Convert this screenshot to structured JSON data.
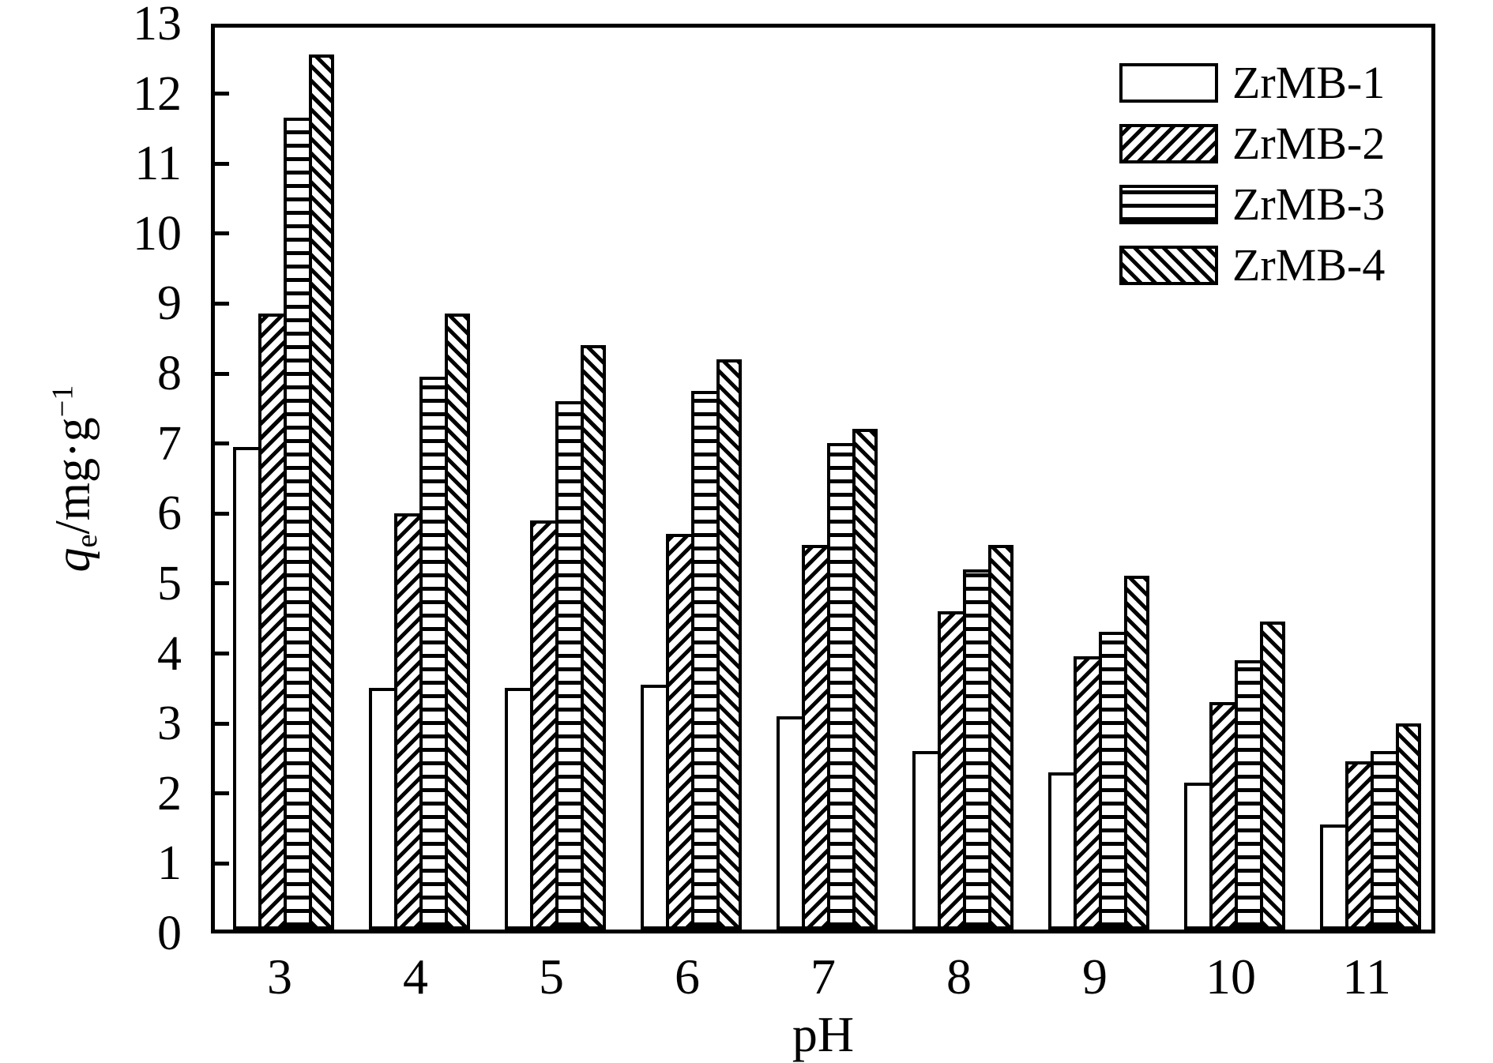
{
  "figure": {
    "background_color": "#ffffff",
    "ink_color": "#000000"
  },
  "axes": {
    "xlabel": "pH",
    "ylabel_parts": {
      "q": "q",
      "sub": "e",
      "rest": "/mg·g",
      "sup": "−1"
    },
    "y_tick_labels": [
      "0",
      "1",
      "2",
      "3",
      "4",
      "5",
      "6",
      "7",
      "8",
      "9",
      "10",
      "11",
      "12",
      "13"
    ],
    "x_tick_labels": [
      "3",
      "4",
      "5",
      "6",
      "7",
      "8",
      "9",
      "10",
      "11"
    ]
  },
  "legend": {
    "entries": [
      {
        "label": "ZrMB-1",
        "hatch": "none"
      },
      {
        "label": "ZrMB-2",
        "hatch": "fwd"
      },
      {
        "label": "ZrMB-3",
        "hatch": "horiz"
      },
      {
        "label": "ZrMB-4",
        "hatch": "back"
      }
    ]
  },
  "chart_data": {
    "type": "bar",
    "title": "",
    "xlabel": "pH",
    "ylabel": "qe/mg·g−1",
    "categories": [
      "3",
      "4",
      "5",
      "6",
      "7",
      "8",
      "9",
      "10",
      "11"
    ],
    "series": [
      {
        "name": "ZrMB-1",
        "hatch": "none",
        "values": [
          6.9,
          3.45,
          3.45,
          3.5,
          3.05,
          2.55,
          2.25,
          2.1,
          1.5
        ]
      },
      {
        "name": "ZrMB-2",
        "hatch": "fwd",
        "values": [
          8.8,
          5.95,
          5.85,
          5.65,
          5.5,
          4.55,
          3.9,
          3.25,
          2.4
        ]
      },
      {
        "name": "ZrMB-3",
        "hatch": "horiz",
        "values": [
          11.6,
          7.9,
          7.55,
          7.7,
          6.95,
          5.15,
          4.25,
          3.85,
          2.55
        ]
      },
      {
        "name": "ZrMB-4",
        "hatch": "back",
        "values": [
          12.5,
          8.8,
          8.35,
          8.15,
          7.15,
          5.5,
          5.05,
          4.4,
          2.95
        ]
      }
    ],
    "ylim": [
      0,
      13
    ],
    "y_tick_step": 1,
    "grid": false,
    "legend_position": "upper-right",
    "bar_fill": "#ffffff",
    "bar_edge": "#000000"
  }
}
